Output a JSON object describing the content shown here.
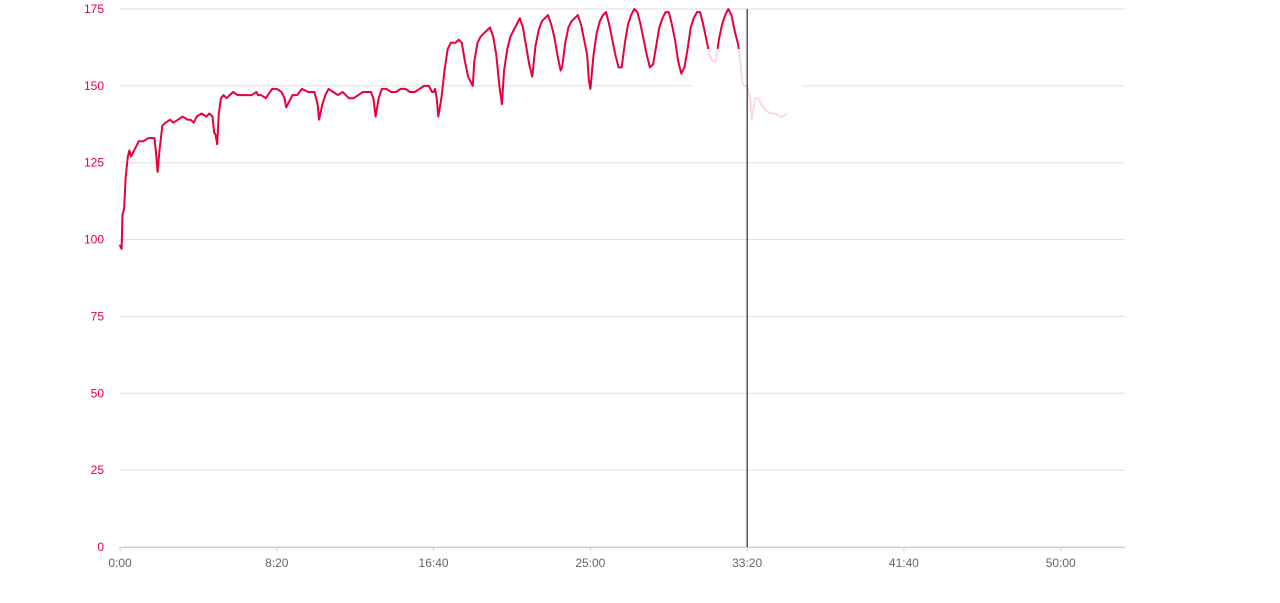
{
  "chart_data": {
    "type": "line",
    "title": "",
    "xlabel": "",
    "ylabel": "",
    "x_unit": "seconds",
    "xlim": [
      0,
      3205
    ],
    "ylim": [
      0,
      175
    ],
    "y_ticks": [
      0,
      25,
      50,
      75,
      100,
      125,
      150,
      175
    ],
    "x_ticks": [
      {
        "value": 0,
        "label": "0:00"
      },
      {
        "value": 500,
        "label": "8:20"
      },
      {
        "value": 1000,
        "label": "16:40"
      },
      {
        "value": 1500,
        "label": "25:00"
      },
      {
        "value": 2000,
        "label": "33:20"
      },
      {
        "value": 2500,
        "label": "41:40"
      },
      {
        "value": 3000,
        "label": "50:00"
      }
    ],
    "grid": true,
    "hover_line_x": 2000,
    "colors": {
      "series": "#e8003a",
      "y_tick_text": "#e8003a",
      "x_tick_text": "#666666",
      "grid": "#dddddd",
      "crosshair": "#000000"
    },
    "series": [
      {
        "name": "",
        "points": [
          [
            0,
            98
          ],
          [
            5,
            97
          ],
          [
            8,
            108
          ],
          [
            13,
            110
          ],
          [
            18,
            120
          ],
          [
            25,
            127
          ],
          [
            30,
            129
          ],
          [
            35,
            127
          ],
          [
            40,
            128
          ],
          [
            50,
            130
          ],
          [
            60,
            132
          ],
          [
            75,
            132
          ],
          [
            90,
            133
          ],
          [
            110,
            133
          ],
          [
            115,
            128
          ],
          [
            120,
            122
          ],
          [
            125,
            128
          ],
          [
            135,
            137
          ],
          [
            145,
            138
          ],
          [
            160,
            139
          ],
          [
            170,
            138
          ],
          [
            185,
            139
          ],
          [
            200,
            140
          ],
          [
            215,
            139
          ],
          [
            225,
            139
          ],
          [
            235,
            138
          ],
          [
            245,
            140
          ],
          [
            260,
            141
          ],
          [
            275,
            140
          ],
          [
            285,
            141
          ],
          [
            295,
            140
          ],
          [
            300,
            135
          ],
          [
            305,
            134
          ],
          [
            310,
            131
          ],
          [
            315,
            141
          ],
          [
            322,
            146
          ],
          [
            330,
            147
          ],
          [
            340,
            146
          ],
          [
            350,
            147
          ],
          [
            360,
            148
          ],
          [
            375,
            147
          ],
          [
            390,
            147
          ],
          [
            405,
            147
          ],
          [
            420,
            147
          ],
          [
            435,
            148
          ],
          [
            440,
            147
          ],
          [
            450,
            147
          ],
          [
            465,
            146
          ],
          [
            485,
            149
          ],
          [
            500,
            149
          ],
          [
            515,
            148
          ],
          [
            525,
            146
          ],
          [
            530,
            143
          ],
          [
            540,
            145
          ],
          [
            550,
            147
          ],
          [
            565,
            147
          ],
          [
            580,
            149
          ],
          [
            600,
            148
          ],
          [
            620,
            148
          ],
          [
            630,
            144
          ],
          [
            635,
            139
          ],
          [
            645,
            144
          ],
          [
            655,
            147
          ],
          [
            665,
            149
          ],
          [
            680,
            148
          ],
          [
            695,
            147
          ],
          [
            710,
            148
          ],
          [
            730,
            146
          ],
          [
            745,
            146
          ],
          [
            760,
            147
          ],
          [
            775,
            148
          ],
          [
            790,
            148
          ],
          [
            800,
            148
          ],
          [
            808,
            146
          ],
          [
            815,
            140
          ],
          [
            825,
            146
          ],
          [
            835,
            149
          ],
          [
            850,
            149
          ],
          [
            865,
            148
          ],
          [
            880,
            148
          ],
          [
            895,
            149
          ],
          [
            910,
            149
          ],
          [
            925,
            148
          ],
          [
            940,
            148
          ],
          [
            955,
            149
          ],
          [
            970,
            150
          ],
          [
            985,
            150
          ],
          [
            995,
            148
          ],
          [
            1000,
            148
          ],
          [
            1005,
            149
          ],
          [
            1010,
            146
          ],
          [
            1015,
            140
          ],
          [
            1025,
            146
          ],
          [
            1035,
            155
          ],
          [
            1045,
            162
          ],
          [
            1055,
            164
          ],
          [
            1070,
            164
          ],
          [
            1080,
            165
          ],
          [
            1090,
            164
          ],
          [
            1100,
            158
          ],
          [
            1110,
            153
          ],
          [
            1120,
            151
          ],
          [
            1125,
            150
          ],
          [
            1130,
            158
          ],
          [
            1140,
            164
          ],
          [
            1150,
            166
          ],
          [
            1160,
            167
          ],
          [
            1170,
            168
          ],
          [
            1180,
            169
          ],
          [
            1190,
            166
          ],
          [
            1200,
            160
          ],
          [
            1210,
            150
          ],
          [
            1218,
            144
          ],
          [
            1225,
            155
          ],
          [
            1235,
            162
          ],
          [
            1245,
            166
          ],
          [
            1255,
            168
          ],
          [
            1265,
            170
          ],
          [
            1275,
            172
          ],
          [
            1285,
            169
          ],
          [
            1295,
            163
          ],
          [
            1305,
            157
          ],
          [
            1315,
            153
          ],
          [
            1325,
            163
          ],
          [
            1335,
            168
          ],
          [
            1345,
            171
          ],
          [
            1355,
            172
          ],
          [
            1365,
            173
          ],
          [
            1375,
            170
          ],
          [
            1385,
            166
          ],
          [
            1395,
            160
          ],
          [
            1405,
            155
          ],
          [
            1410,
            156
          ],
          [
            1420,
            164
          ],
          [
            1430,
            169
          ],
          [
            1440,
            171
          ],
          [
            1450,
            172
          ],
          [
            1460,
            173
          ],
          [
            1470,
            170
          ],
          [
            1480,
            165
          ],
          [
            1490,
            160
          ],
          [
            1495,
            152
          ],
          [
            1500,
            149
          ],
          [
            1510,
            160
          ],
          [
            1520,
            167
          ],
          [
            1530,
            171
          ],
          [
            1540,
            173
          ],
          [
            1550,
            174
          ],
          [
            1560,
            170
          ],
          [
            1570,
            165
          ],
          [
            1580,
            160
          ],
          [
            1590,
            156
          ],
          [
            1600,
            156
          ],
          [
            1610,
            164
          ],
          [
            1620,
            170
          ],
          [
            1630,
            173
          ],
          [
            1640,
            175
          ],
          [
            1650,
            174
          ],
          [
            1660,
            170
          ],
          [
            1670,
            165
          ],
          [
            1680,
            160
          ],
          [
            1690,
            156
          ],
          [
            1700,
            157
          ],
          [
            1710,
            163
          ],
          [
            1720,
            169
          ],
          [
            1730,
            172
          ],
          [
            1740,
            174
          ],
          [
            1750,
            174
          ],
          [
            1760,
            170
          ],
          [
            1770,
            165
          ],
          [
            1780,
            158
          ],
          [
            1790,
            154
          ],
          [
            1800,
            156
          ],
          [
            1810,
            162
          ],
          [
            1820,
            169
          ],
          [
            1830,
            172
          ],
          [
            1840,
            174
          ],
          [
            1850,
            174
          ],
          [
            1860,
            170
          ],
          [
            1870,
            165
          ],
          [
            1880,
            160
          ],
          [
            1890,
            158
          ],
          [
            1900,
            158
          ],
          [
            1910,
            165
          ],
          [
            1920,
            170
          ],
          [
            1930,
            173
          ],
          [
            1940,
            175
          ],
          [
            1950,
            173
          ],
          [
            1960,
            168
          ],
          [
            1970,
            164
          ],
          [
            1975,
            161
          ],
          [
            1980,
            156
          ],
          [
            1985,
            151
          ],
          [
            1990,
            150
          ],
          [
            2000,
            150
          ],
          [
            2010,
            146
          ],
          [
            2015,
            139
          ],
          [
            2025,
            146
          ],
          [
            2035,
            146
          ],
          [
            2045,
            144
          ],
          [
            2060,
            142
          ],
          [
            2075,
            141
          ],
          [
            2090,
            141
          ],
          [
            2105,
            140
          ],
          [
            2115,
            140
          ],
          [
            2125,
            141
          ]
        ]
      }
    ]
  }
}
